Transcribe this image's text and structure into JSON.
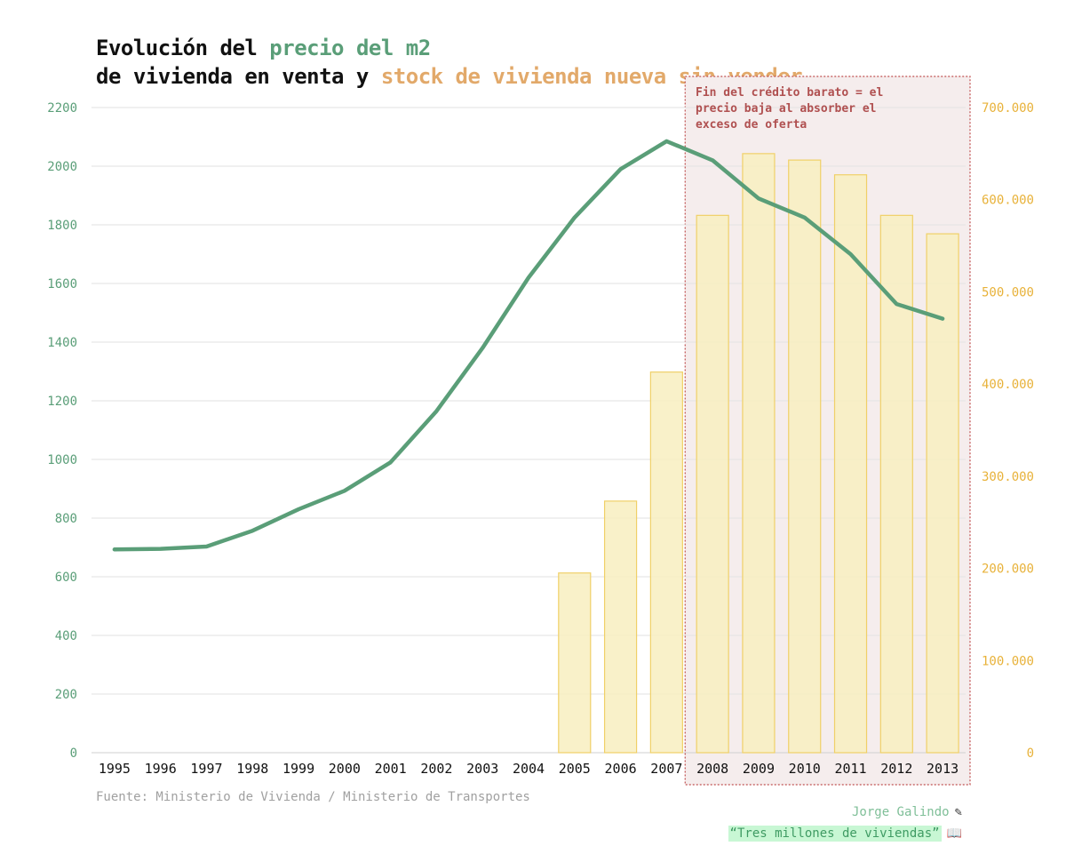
{
  "title": {
    "part1": "Evolución del ",
    "price_highlight": "precio del m2",
    "part2": " de vivienda en venta y ",
    "stock_highlight": "stock de vivienda nueva sin vender"
  },
  "colors": {
    "price_line": "#5a9e78",
    "stock_bar_fill": "#f8efbf",
    "stock_bar_stroke": "#f0d068",
    "stock_axis": "#e8b23a",
    "price_axis": "#5a9e78",
    "highlight_fill": "#f5eded",
    "highlight_border": "#c05050",
    "stock_title": "#e2a96a"
  },
  "annotation": {
    "text": "Fin del crédito barato = el precio baja al absorber el exceso de oferta"
  },
  "chart_data": {
    "type": "bar+line",
    "categories": [
      "1995",
      "1996",
      "1997",
      "1998",
      "1999",
      "2000",
      "2001",
      "2002",
      "2003",
      "2004",
      "2005",
      "2006",
      "2007",
      "2008",
      "2009",
      "2010",
      "2011",
      "2012",
      "2013"
    ],
    "series": [
      {
        "name": "precio del m2",
        "type": "line",
        "axis": "left",
        "values": [
          693,
          695,
          703,
          757,
          830,
          893,
          990,
          1165,
          1380,
          1620,
          1825,
          1990,
          2085,
          2020,
          1890,
          1825,
          1700,
          1530,
          1480
        ]
      },
      {
        "name": "stock de vivienda nueva sin vender",
        "type": "bar",
        "axis": "right",
        "values": [
          null,
          null,
          null,
          null,
          null,
          null,
          null,
          null,
          null,
          null,
          195000,
          273000,
          413000,
          583000,
          650000,
          643000,
          627000,
          583000,
          563000
        ]
      }
    ],
    "left_axis": {
      "min": 0,
      "max": 2200,
      "ticks": [
        "0",
        "200",
        "400",
        "600",
        "800",
        "1000",
        "1200",
        "1400",
        "1600",
        "1800",
        "2000",
        "2200"
      ]
    },
    "right_axis": {
      "min": 0,
      "max": 700000,
      "ticks": [
        "0",
        "100.000",
        "200.000",
        "300.000",
        "400.000",
        "500.000",
        "600.000",
        "700.000"
      ]
    },
    "highlight_range": [
      "2008",
      "2013"
    ],
    "grid": true
  },
  "footer": {
    "source": "Fuente: Ministerio de Vivienda / Ministerio de Transportes",
    "author": "Jorge Galindo",
    "author_icon": "pen-icon",
    "book": "“Tres millones de viviendas”",
    "book_icon": "book-icon"
  }
}
